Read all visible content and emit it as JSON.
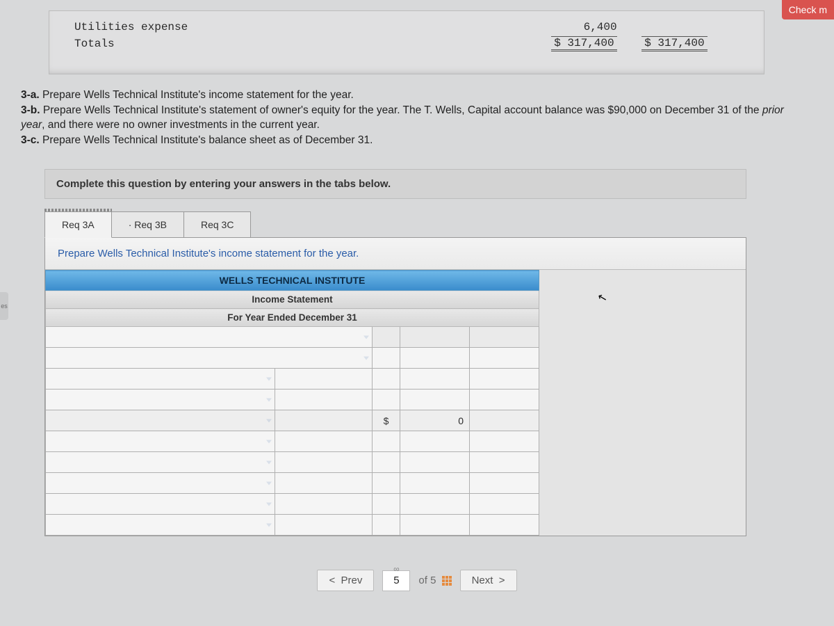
{
  "sidebar": {
    "tab_label": "es"
  },
  "check_button": "Check m",
  "top_table": {
    "rows": [
      {
        "label": "Utilities expense",
        "debit": "6,400",
        "credit": ""
      },
      {
        "label": "Totals",
        "debit": "$ 317,400",
        "credit": "$ 317,400"
      }
    ]
  },
  "instructions": {
    "a_label": "3-a.",
    "a_text": "Prepare Wells Technical Institute's income statement for the year.",
    "b_label": "3-b.",
    "b_text": "Prepare Wells Technical Institute's statement of owner's equity for the year. The T. Wells, Capital account balance was $90,000 on December 31 of the ",
    "b_italic": "prior year",
    "b_text2": ", and there were no owner investments in the current year.",
    "c_label": "3-c.",
    "c_text": "Prepare Wells Technical Institute's balance sheet as of December 31."
  },
  "complete_bar": "Complete this question by entering your answers in the tabs below.",
  "tabs": {
    "t1": "Req 3A",
    "t2": "Req 3B",
    "t3": "Req 3C"
  },
  "work_prompt": "Prepare Wells Technical Institute's income statement for the year.",
  "sheet_header": {
    "line1": "WELLS TECHNICAL INSTITUTE",
    "line2": "Income Statement",
    "line3": "For Year Ended December 31"
  },
  "calc": {
    "currency": "$",
    "value": "0"
  },
  "nav": {
    "prev": "Prev",
    "next": "Next",
    "page": "5",
    "total": "of 5"
  },
  "colors": {
    "header_blue_top": "#6fb8e8",
    "header_blue_bottom": "#3a8ccc",
    "prompt_text": "#2a5ca8",
    "check_red": "#d9534f",
    "grid_orange": "#e58b3f",
    "page_bg": "#d8d9da"
  }
}
